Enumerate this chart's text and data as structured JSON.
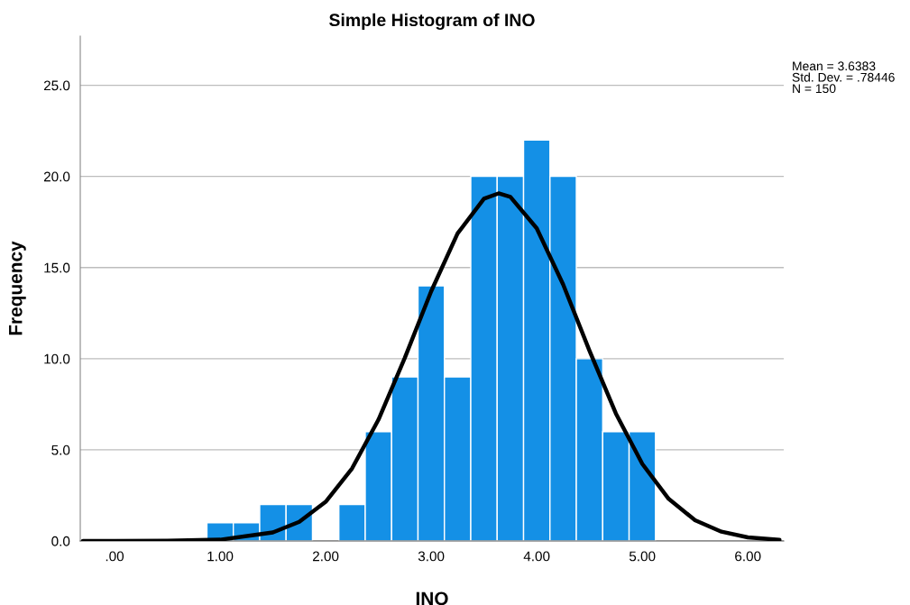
{
  "chart_data": {
    "type": "histogram",
    "title": "Simple Histogram of INO",
    "xlabel": "INO",
    "ylabel": "Frequency",
    "bins": [
      0.875,
      1.125,
      1.375,
      1.625,
      1.875,
      2.125,
      2.375,
      2.625,
      2.875,
      3.125,
      3.375,
      3.625,
      3.875,
      4.125,
      4.375,
      4.625,
      4.875,
      5.125
    ],
    "values": [
      1,
      1,
      2,
      2,
      0,
      2,
      6,
      9,
      14,
      9,
      20,
      20,
      22,
      20,
      10,
      6,
      6
    ],
    "color": "#1490e6",
    "series": [
      {
        "type": "line",
        "color": "#000000",
        "x": [
          -0.3,
          0.0,
          0.5,
          1.0,
          1.5,
          1.75,
          2.0,
          2.25,
          2.5,
          2.75,
          3.0,
          3.25,
          3.5,
          3.6383,
          3.75,
          4.0,
          4.25,
          4.5,
          4.75,
          5.0,
          5.25,
          5.5,
          5.75,
          6.0,
          6.3
        ],
        "values": [
          0,
          0,
          0.01,
          0.07,
          0.47,
          1.05,
          2.15,
          3.98,
          6.65,
          10.05,
          13.7,
          16.87,
          18.78,
          19.07,
          18.88,
          17.15,
          14.07,
          10.43,
          6.99,
          4.23,
          2.31,
          1.14,
          0.51,
          0.2,
          0.06
        ]
      }
    ],
    "xlim": [
      -0.325,
      6.34
    ],
    "ylim": [
      0,
      27.7
    ],
    "xticks": [
      {
        "value": 0,
        "label": ".00"
      },
      {
        "value": 1,
        "label": "1.00"
      },
      {
        "value": 2,
        "label": "2.00"
      },
      {
        "value": 3,
        "label": "3.00"
      },
      {
        "value": 4,
        "label": "4.00"
      },
      {
        "value": 5,
        "label": "5.00"
      },
      {
        "value": 6,
        "label": "6.00"
      }
    ],
    "yticks": [
      {
        "value": 0,
        "label": "0.0"
      },
      {
        "value": 5,
        "label": "5.0"
      },
      {
        "value": 10,
        "label": "10.0"
      },
      {
        "value": 15,
        "label": "15.0"
      },
      {
        "value": 20,
        "label": "20.0"
      },
      {
        "value": 25,
        "label": "25.0"
      }
    ],
    "grid": "y",
    "annotations": [
      "Mean = 3.6383\nStd. Dev. = .78446\nN = 150"
    ]
  }
}
